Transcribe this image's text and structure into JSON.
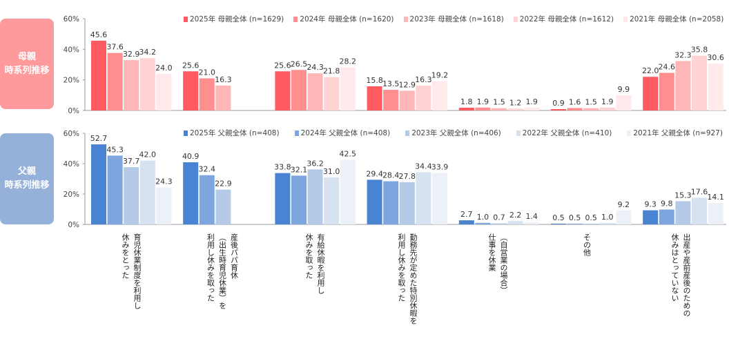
{
  "panels": [
    {
      "side_label": "母親\n時系列推移",
      "side_color": "#ff9a9c",
      "legend": [
        "2025年 母親全体 (n=1629)",
        "2024年 母親全体 (n=1620)",
        "2023年 母親全体 (n=1618)",
        "2022年 母親全体 (n=1612)",
        "2021年 母親全体 (n=2058)"
      ],
      "colors": [
        "#ff5a5f",
        "#ff8e8f",
        "#ffb6b7",
        "#ffd3d4",
        "#ffe9ea"
      ]
    },
    {
      "side_label": "父親\n時系列推移",
      "side_color": "#95b1da",
      "legend": [
        "2025年 父親全体 (n=408)",
        "2024年 父親全体 (n=408)",
        "2023年 父親全体 (n=406)",
        "2022年 父親全体 (n=410)",
        "2021年 父親全体 (n=927)"
      ],
      "colors": [
        "#4a83d1",
        "#7ca6dd",
        "#b4cae7",
        "#d7e2f1",
        "#ecf1f8"
      ]
    }
  ],
  "categories": [
    "育児休業制度を利用し\n休みをとった",
    "産後パパ育休\n（出生時育児休業）を\n利用し休みを取った",
    "有給休暇を利用し\n休みを取った",
    "勤務先が定めた特別休暇を\n利用し休みを取った",
    "（自営業の場合）\n仕事を休業",
    "その他",
    "出産や産前産後のための\n休みはとっていない"
  ],
  "chart_data": [
    {
      "type": "bar",
      "ylim": [
        0,
        60
      ],
      "yticks": [
        "0%",
        "20%",
        "40%",
        "60%"
      ],
      "series": [
        {
          "name": "2025年 母親全体 (n=1629)",
          "values": [
            45.6,
            25.6,
            25.6,
            15.8,
            1.8,
            0.9,
            22.0
          ]
        },
        {
          "name": "2024年 母親全体 (n=1620)",
          "values": [
            37.6,
            21.0,
            26.5,
            13.5,
            1.9,
            1.6,
            24.6
          ]
        },
        {
          "name": "2023年 母親全体 (n=1618)",
          "values": [
            32.9,
            16.3,
            24.3,
            12.9,
            1.5,
            1.5,
            32.3
          ]
        },
        {
          "name": "2022年 母親全体 (n=1612)",
          "values": [
            34.2,
            null,
            21.8,
            16.3,
            1.2,
            1.9,
            35.8
          ]
        },
        {
          "name": "2021年 母親全体 (n=2058)",
          "values": [
            24.0,
            null,
            28.2,
            19.2,
            1.9,
            9.9,
            30.6
          ]
        }
      ]
    },
    {
      "type": "bar",
      "ylim": [
        0,
        60
      ],
      "yticks": [
        "0%",
        "20%",
        "40%",
        "60%"
      ],
      "series": [
        {
          "name": "2025年 父親全体 (n=408)",
          "values": [
            52.7,
            40.9,
            33.8,
            29.4,
            2.7,
            0.5,
            9.3
          ]
        },
        {
          "name": "2024年 父親全体 (n=408)",
          "values": [
            45.3,
            32.4,
            32.1,
            28.4,
            1.0,
            0.5,
            9.8
          ]
        },
        {
          "name": "2023年 父親全体 (n=406)",
          "values": [
            37.7,
            22.9,
            36.2,
            27.8,
            0.7,
            0.5,
            15.3
          ]
        },
        {
          "name": "2022年 父親全体 (n=410)",
          "values": [
            42.0,
            null,
            31.0,
            34.4,
            2.2,
            1.0,
            17.6
          ]
        },
        {
          "name": "2021年 父親全体 (n=927)",
          "values": [
            24.3,
            null,
            42.5,
            33.9,
            1.4,
            9.2,
            14.1
          ]
        }
      ]
    }
  ]
}
